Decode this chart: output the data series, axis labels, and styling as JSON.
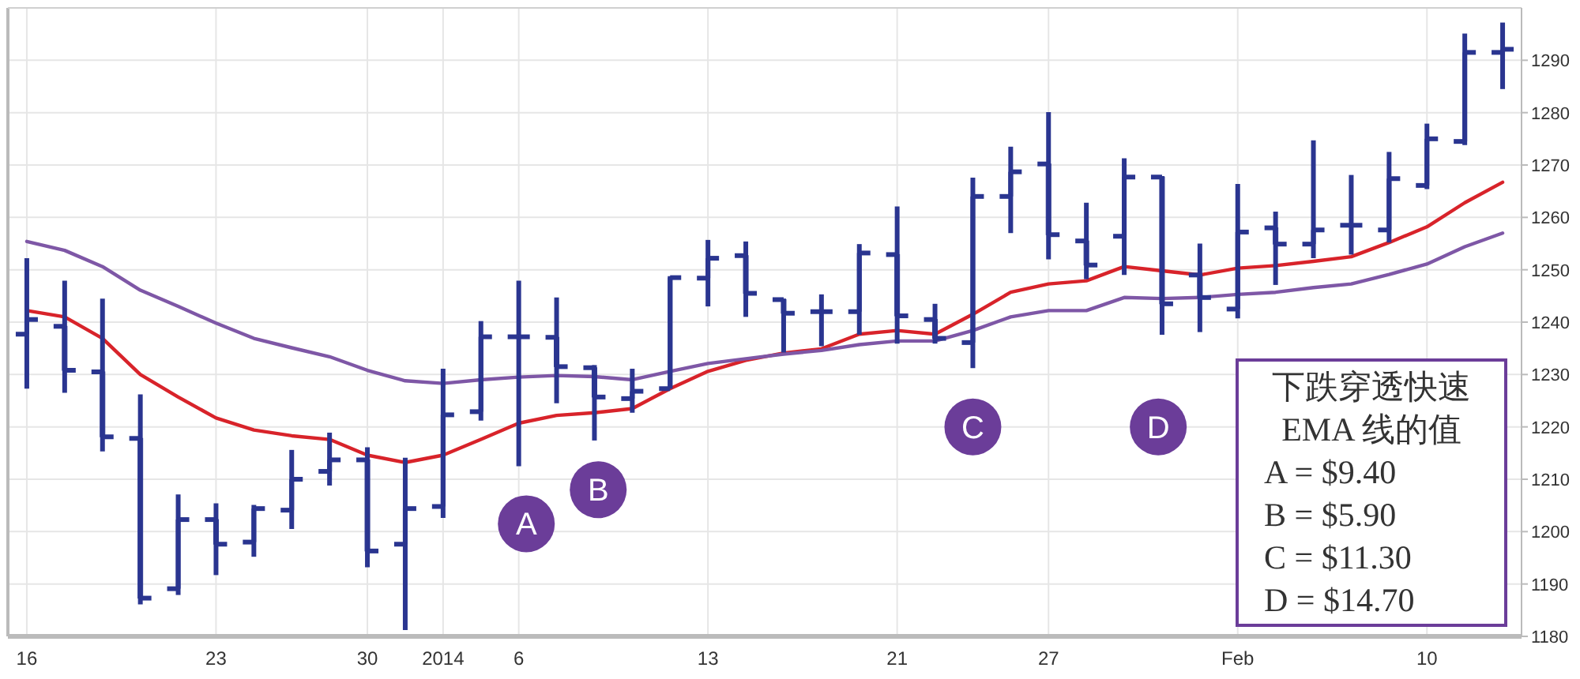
{
  "chart_data": {
    "type": "candlestick",
    "categories": [
      "16",
      null,
      null,
      null,
      null,
      "23",
      null,
      null,
      null,
      "30",
      null,
      "2014",
      null,
      "6",
      null,
      null,
      null,
      null,
      "13",
      null,
      null,
      null,
      null,
      "21",
      null,
      null,
      null,
      "27",
      null,
      null,
      null,
      null,
      "Feb",
      null,
      null,
      null,
      null,
      "10",
      null,
      null
    ],
    "color": "#2a3590",
    "ohlc": [
      [
        1237.7,
        1252.2,
        1227.3,
        1240.5
      ],
      [
        1239.2,
        1247.9,
        1226.5,
        1230.8
      ],
      [
        1230.5,
        1244.5,
        1215.3,
        1218.1
      ],
      [
        1217.8,
        1226.2,
        1186.1,
        1187.3
      ],
      [
        1189.1,
        1207.1,
        1187.9,
        1202.3
      ],
      [
        1202.3,
        1205.4,
        1191.7,
        1197.6
      ],
      [
        1198.0,
        1205.1,
        1195.2,
        1204.4
      ],
      [
        1204.1,
        1215.6,
        1200.5,
        1210.0
      ],
      [
        1211.5,
        1218.9,
        1208.8,
        1213.7
      ],
      [
        1213.7,
        1216.1,
        1193.2,
        1196.3
      ],
      [
        1197.6,
        1214.1,
        1181.2,
        1204.4
      ],
      [
        1204.8,
        1231.1,
        1202.6,
        1222.3
      ],
      [
        1222.9,
        1240.2,
        1221.2,
        1237.2
      ],
      [
        1237.2,
        1247.9,
        1212.5,
        1237.2
      ],
      [
        1237.1,
        1244.7,
        1224.5,
        1231.5
      ],
      [
        1231.3,
        1231.8,
        1217.4,
        1225.7
      ],
      [
        1225.4,
        1231.1,
        1222.7,
        1226.8
      ],
      [
        1227.3,
        1248.8,
        1227.3,
        1248.5
      ],
      [
        1248.4,
        1255.7,
        1243.0,
        1252.2
      ],
      [
        1252.7,
        1255.4,
        1241.0,
        1245.5
      ],
      [
        1244.3,
        1244.5,
        1234.2,
        1241.7
      ],
      [
        1242.0,
        1245.3,
        1235.4,
        1242.0
      ],
      [
        1242.0,
        1254.9,
        1237.6,
        1253.2
      ],
      [
        1252.9,
        1262.1,
        1235.9,
        1241.2
      ],
      [
        1240.5,
        1243.5,
        1235.9,
        1236.9
      ],
      [
        1236.1,
        1267.6,
        1231.2,
        1264.0
      ],
      [
        1264.0,
        1273.5,
        1257.0,
        1268.7
      ],
      [
        1270.2,
        1280.1,
        1252.0,
        1256.7
      ],
      [
        1255.5,
        1262.8,
        1248.2,
        1250.9
      ],
      [
        1256.4,
        1271.3,
        1249.0,
        1267.7
      ],
      [
        1267.7,
        1267.9,
        1237.6,
        1243.5
      ],
      [
        1249.0,
        1255.0,
        1238.1,
        1244.7
      ],
      [
        1242.5,
        1266.4,
        1240.7,
        1257.2
      ],
      [
        1258.0,
        1261.1,
        1247.1,
        1254.9
      ],
      [
        1254.9,
        1274.7,
        1252.2,
        1257.6
      ],
      [
        1258.5,
        1268.1,
        1252.9,
        1258.5
      ],
      [
        1257.6,
        1272.5,
        1255.2,
        1267.4
      ],
      [
        1266.1,
        1277.9,
        1265.4,
        1275.0
      ],
      [
        1274.5,
        1295.1,
        1273.8,
        1291.5
      ],
      [
        1291.5,
        1297.2,
        1284.5,
        1292.1
      ]
    ],
    "series": [
      {
        "type": "line",
        "color": "#d8232a",
        "values": [
          1242.2,
          1241.0,
          1236.9,
          1230.0,
          1225.7,
          1221.7,
          1219.4,
          1218.3,
          1217.6,
          1214.6,
          1213.2,
          1214.6,
          1217.6,
          1220.7,
          1222.2,
          1222.7,
          1223.5,
          1227.3,
          1230.6,
          1232.7,
          1234.1,
          1234.9,
          1237.7,
          1238.4,
          1237.7,
          1241.5,
          1245.7,
          1247.3,
          1247.9,
          1250.6,
          1249.8,
          1249.0,
          1250.3,
          1250.8,
          1251.6,
          1252.5,
          1255.2,
          1258.2,
          1262.8,
          1266.7
        ]
      },
      {
        "type": "line",
        "color": "#7e57a6",
        "values": [
          1255.4,
          1253.7,
          1250.6,
          1246.1,
          1243.0,
          1239.8,
          1236.9,
          1235.1,
          1233.4,
          1230.8,
          1228.8,
          1228.3,
          1229.0,
          1229.5,
          1229.8,
          1229.6,
          1229.0,
          1230.6,
          1232.1,
          1233.0,
          1233.9,
          1234.6,
          1235.7,
          1236.4,
          1236.4,
          1238.4,
          1241.0,
          1242.2,
          1242.2,
          1244.7,
          1244.5,
          1244.7,
          1245.3,
          1245.7,
          1246.6,
          1247.3,
          1249.1,
          1251.1,
          1254.4,
          1257.0
        ]
      }
    ],
    "ylim": [
      1180,
      1300
    ],
    "yticks": [
      1180,
      1190,
      1200,
      1210,
      1220,
      1230,
      1240,
      1250,
      1260,
      1270,
      1280,
      1290
    ],
    "grid": true,
    "annotations": [
      "A",
      "B",
      "C",
      "D",
      "下跌穿透快速",
      "EMA 线的值",
      "A = $9.40",
      "B = $5.90",
      "C = $11.30",
      "D = $14.70"
    ]
  }
}
